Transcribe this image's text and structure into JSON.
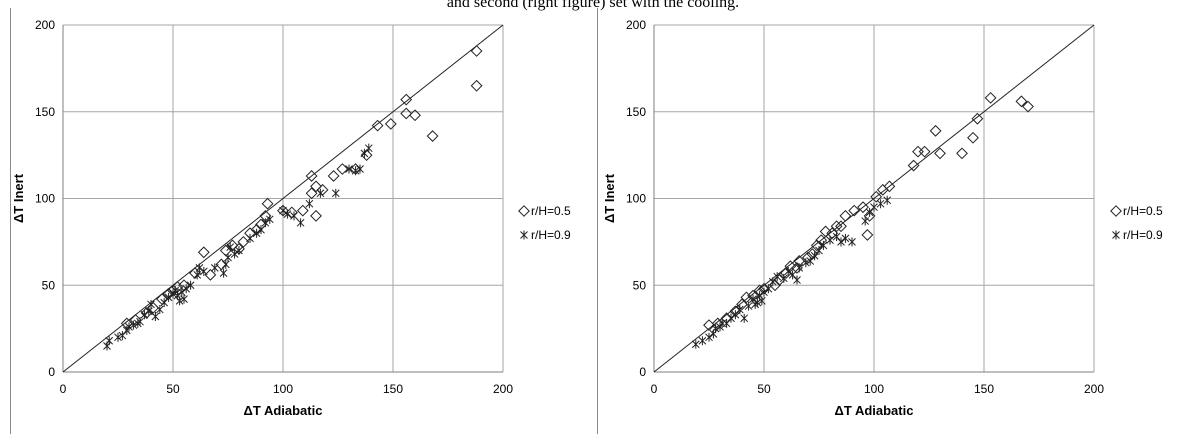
{
  "caption": "and second (right figure) set with the cooling.",
  "chart_data": [
    {
      "type": "scatter",
      "xlabel": "ΔT Adiabatic",
      "ylabel": "ΔT Inert",
      "xlim": [
        0,
        200
      ],
      "ylim": [
        0,
        200
      ],
      "xticks": [
        "0",
        "50",
        "100",
        "150",
        "200"
      ],
      "yticks": [
        "0",
        "50",
        "100",
        "150",
        "200"
      ],
      "grid": true,
      "reference_line": [
        [
          0,
          0
        ],
        [
          200,
          200
        ]
      ],
      "legend_position": "right",
      "series": [
        {
          "name": "r/H=0.5",
          "marker": "diamond",
          "points": [
            [
              29,
              28
            ],
            [
              33,
              30
            ],
            [
              38,
              34
            ],
            [
              41,
              37
            ],
            [
              45,
              42
            ],
            [
              48,
              45
            ],
            [
              50,
              47
            ],
            [
              52,
              49
            ],
            [
              55,
              50
            ],
            [
              60,
              57
            ],
            [
              64,
              69
            ],
            [
              67,
              56
            ],
            [
              72,
              62
            ],
            [
              74,
              70
            ],
            [
              77,
              73
            ],
            [
              80,
              71
            ],
            [
              82,
              75
            ],
            [
              85,
              80
            ],
            [
              88,
              82
            ],
            [
              90,
              85
            ],
            [
              92,
              90
            ],
            [
              93,
              97
            ],
            [
              100,
              93
            ],
            [
              104,
              92
            ],
            [
              109,
              93
            ],
            [
              113,
              103
            ],
            [
              113,
              113
            ],
            [
              115,
              107
            ],
            [
              115,
              90
            ],
            [
              118,
              105
            ],
            [
              123,
              113
            ],
            [
              127,
              117
            ],
            [
              133,
              117
            ],
            [
              138,
              125
            ],
            [
              143,
              142
            ],
            [
              149,
              143
            ],
            [
              156,
              149
            ],
            [
              156,
              157
            ],
            [
              160,
              148
            ],
            [
              168,
              136
            ],
            [
              188,
              165
            ],
            [
              188,
              185
            ]
          ]
        },
        {
          "name": "r/H=0.9",
          "marker": "star",
          "points": [
            [
              20,
              15
            ],
            [
              21,
              18
            ],
            [
              25,
              20
            ],
            [
              27,
              21
            ],
            [
              29,
              24
            ],
            [
              30,
              26
            ],
            [
              32,
              27
            ],
            [
              34,
              28
            ],
            [
              35,
              29
            ],
            [
              37,
              33
            ],
            [
              39,
              35
            ],
            [
              40,
              39
            ],
            [
              42,
              32
            ],
            [
              44,
              36
            ],
            [
              46,
              40
            ],
            [
              48,
              43
            ],
            [
              50,
              45
            ],
            [
              51,
              47
            ],
            [
              52,
              44
            ],
            [
              53,
              41
            ],
            [
              54,
              46
            ],
            [
              55,
              42
            ],
            [
              56,
              48
            ],
            [
              58,
              50
            ],
            [
              61,
              56
            ],
            [
              62,
              60
            ],
            [
              64,
              58
            ],
            [
              69,
              60
            ],
            [
              73,
              57
            ],
            [
              74,
              62
            ],
            [
              75,
              66
            ],
            [
              76,
              72
            ],
            [
              78,
              68
            ],
            [
              80,
              70
            ],
            [
              85,
              77
            ],
            [
              88,
              80
            ],
            [
              90,
              82
            ],
            [
              92,
              86
            ],
            [
              94,
              88
            ],
            [
              100,
              93
            ],
            [
              102,
              91
            ],
            [
              105,
              90
            ],
            [
              108,
              86
            ],
            [
              112,
              97
            ],
            [
              117,
              103
            ],
            [
              124,
              103
            ],
            [
              130,
              117
            ],
            [
              133,
              116
            ],
            [
              135,
              117
            ],
            [
              137,
              126
            ],
            [
              139,
              129
            ]
          ]
        }
      ]
    },
    {
      "type": "scatter",
      "xlabel": "ΔT Adiabatic",
      "ylabel": "ΔT Inert",
      "xlim": [
        0,
        200
      ],
      "ylim": [
        0,
        200
      ],
      "xticks": [
        "0",
        "50",
        "100",
        "150",
        "200"
      ],
      "yticks": [
        "0",
        "50",
        "100",
        "150",
        "200"
      ],
      "grid": true,
      "reference_line": [
        [
          0,
          0
        ],
        [
          200,
          200
        ]
      ],
      "legend_position": "right",
      "series": [
        {
          "name": "r/H=0.5",
          "marker": "diamond",
          "points": [
            [
              25,
              27
            ],
            [
              29,
              28
            ],
            [
              33,
              31
            ],
            [
              37,
              35
            ],
            [
              40,
              39
            ],
            [
              42,
              43
            ],
            [
              45,
              44
            ],
            [
              48,
              47
            ],
            [
              50,
              48
            ],
            [
              55,
              50
            ],
            [
              57,
              53
            ],
            [
              60,
              57
            ],
            [
              62,
              61
            ],
            [
              65,
              60
            ],
            [
              66,
              64
            ],
            [
              70,
              66
            ],
            [
              72,
              68
            ],
            [
              74,
              73
            ],
            [
              76,
              76
            ],
            [
              78,
              81
            ],
            [
              81,
              80
            ],
            [
              83,
              84
            ],
            [
              85,
              84
            ],
            [
              87,
              90
            ],
            [
              91,
              93
            ],
            [
              95,
              95
            ],
            [
              97,
              79
            ],
            [
              98,
              90
            ],
            [
              101,
              101
            ],
            [
              104,
              105
            ],
            [
              107,
              107
            ],
            [
              118,
              119
            ],
            [
              120,
              127
            ],
            [
              123,
              127
            ],
            [
              128,
              139
            ],
            [
              130,
              126
            ],
            [
              140,
              126
            ],
            [
              145,
              135
            ],
            [
              147,
              146
            ],
            [
              153,
              158
            ],
            [
              167,
              156
            ],
            [
              170,
              153
            ]
          ]
        },
        {
          "name": "r/H=0.9",
          "marker": "star",
          "points": [
            [
              19,
              16
            ],
            [
              22,
              18
            ],
            [
              25,
              20
            ],
            [
              27,
              22
            ],
            [
              28,
              25
            ],
            [
              30,
              26
            ],
            [
              31,
              28
            ],
            [
              33,
              28
            ],
            [
              35,
              31
            ],
            [
              37,
              33
            ],
            [
              39,
              36
            ],
            [
              41,
              31
            ],
            [
              43,
              38
            ],
            [
              45,
              42
            ],
            [
              46,
              39
            ],
            [
              47,
              40
            ],
            [
              48,
              44
            ],
            [
              49,
              41
            ],
            [
              50,
              46
            ],
            [
              52,
              48
            ],
            [
              54,
              52
            ],
            [
              56,
              55
            ],
            [
              59,
              54
            ],
            [
              61,
              58
            ],
            [
              63,
              56
            ],
            [
              65,
              53
            ],
            [
              66,
              60
            ],
            [
              69,
              63
            ],
            [
              71,
              64
            ],
            [
              73,
              67
            ],
            [
              75,
              70
            ],
            [
              77,
              73
            ],
            [
              80,
              76
            ],
            [
              83,
              78
            ],
            [
              85,
              75
            ],
            [
              87,
              77
            ],
            [
              90,
              75
            ],
            [
              96,
              87
            ],
            [
              98,
              92
            ],
            [
              100,
              95
            ],
            [
              103,
              97
            ],
            [
              106,
              99
            ]
          ]
        }
      ]
    }
  ]
}
